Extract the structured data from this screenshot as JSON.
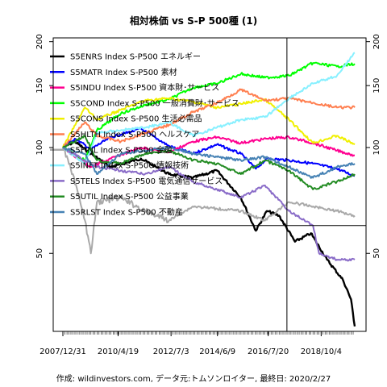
{
  "chart_data": {
    "type": "line",
    "title": "相対株価 vs S-P 500種 (1)",
    "caption": "作成: wildinvestors.com, データ元:トムソンロイター, 最終日: 2020/2/27",
    "y_scale": "log",
    "ylim": [
      30,
      205
    ],
    "y_ticks": [
      50,
      100,
      150,
      200
    ],
    "x_range": [
      "2007-12-31",
      "2020-02-27"
    ],
    "x_tick_labels": [
      "2007/12/31",
      "2010/4/19",
      "2012/7/3",
      "2014/6/9",
      "2016/7/20",
      "2018/10/4"
    ],
    "x_tick_dates": [
      "2007-12-31",
      "2010-04-19",
      "2012-07-03",
      "2014-06-09",
      "2016-07-20",
      "2018-10-04"
    ],
    "reference_line": {
      "y": 60,
      "date": "2017-05-01"
    },
    "grid": false,
    "legend_position": "top-left",
    "series": [
      {
        "name": "S5ENRS Index S-P500 エネルギー",
        "color": "#000000",
        "points": [
          [
            "2007-12-31",
            100
          ],
          [
            "2008-06-30",
            104
          ],
          [
            "2009-03-01",
            96
          ],
          [
            "2010-01-01",
            88
          ],
          [
            "2011-04-01",
            93
          ],
          [
            "2012-06-01",
            84
          ],
          [
            "2013-06-01",
            82
          ],
          [
            "2014-06-01",
            86
          ],
          [
            "2015-06-01",
            72
          ],
          [
            "2016-01-15",
            58
          ],
          [
            "2016-07-01",
            66
          ],
          [
            "2017-01-01",
            64
          ],
          [
            "2017-09-01",
            54
          ],
          [
            "2018-05-01",
            57
          ],
          [
            "2019-01-01",
            48
          ],
          [
            "2019-09-01",
            42
          ],
          [
            "2020-01-01",
            37
          ],
          [
            "2020-02-27",
            31
          ]
        ]
      },
      {
        "name": "S5MATR Index S-P500 素材",
        "color": "#0000ff",
        "points": [
          [
            "2007-12-31",
            100
          ],
          [
            "2008-06-30",
            106
          ],
          [
            "2009-03-01",
            99
          ],
          [
            "2010-01-01",
            107
          ],
          [
            "2011-04-01",
            113
          ],
          [
            "2012-06-01",
            101
          ],
          [
            "2013-06-01",
            96
          ],
          [
            "2014-06-01",
            102
          ],
          [
            "2015-06-01",
            96
          ],
          [
            "2016-01-15",
            87
          ],
          [
            "2016-07-01",
            93
          ],
          [
            "2017-06-01",
            92
          ],
          [
            "2018-06-01",
            90
          ],
          [
            "2019-06-01",
            87
          ],
          [
            "2020-02-27",
            83
          ]
        ]
      },
      {
        "name": "S5INDU Index S-P500 資本財･サービス",
        "color": "#ff0090",
        "points": [
          [
            "2007-12-31",
            100
          ],
          [
            "2009-03-01",
            88
          ],
          [
            "2010-01-01",
            93
          ],
          [
            "2011-04-01",
            100
          ],
          [
            "2012-06-01",
            97
          ],
          [
            "2013-06-01",
            104
          ],
          [
            "2014-06-01",
            107
          ],
          [
            "2015-06-01",
            103
          ],
          [
            "2016-07-01",
            106
          ],
          [
            "2017-06-01",
            107
          ],
          [
            "2018-06-01",
            103
          ],
          [
            "2019-06-01",
            98
          ],
          [
            "2020-02-27",
            95
          ]
        ]
      },
      {
        "name": "S5COND Index S-P500 一般消費財･サービス",
        "color": "#00ff00",
        "points": [
          [
            "2007-12-31",
            100
          ],
          [
            "2008-12-01",
            92
          ],
          [
            "2009-06-01",
            112
          ],
          [
            "2010-06-01",
            125
          ],
          [
            "2011-06-01",
            132
          ],
          [
            "2012-06-01",
            137
          ],
          [
            "2013-06-01",
            148
          ],
          [
            "2014-06-01",
            152
          ],
          [
            "2015-06-01",
            162
          ],
          [
            "2016-06-01",
            158
          ],
          [
            "2017-06-01",
            160
          ],
          [
            "2018-06-01",
            174
          ],
          [
            "2019-06-01",
            170
          ],
          [
            "2020-02-27",
            173
          ]
        ]
      },
      {
        "name": "S5CONS Index S-P500 生活必需品",
        "color": "#f0f000",
        "points": [
          [
            "2007-12-31",
            100
          ],
          [
            "2008-12-01",
            130
          ],
          [
            "2009-06-01",
            120
          ],
          [
            "2010-06-01",
            128
          ],
          [
            "2011-06-01",
            136
          ],
          [
            "2012-06-01",
            138
          ],
          [
            "2013-06-01",
            135
          ],
          [
            "2014-06-01",
            130
          ],
          [
            "2015-06-01",
            133
          ],
          [
            "2016-06-01",
            137
          ],
          [
            "2017-06-01",
            120
          ],
          [
            "2018-06-01",
            103
          ],
          [
            "2019-06-01",
            108
          ],
          [
            "2020-02-27",
            102
          ]
        ]
      },
      {
        "name": "S5HLTH Index S-P500 ヘルスケア",
        "color": "#ff7f50",
        "points": [
          [
            "2007-12-31",
            100
          ],
          [
            "2008-12-01",
            118
          ],
          [
            "2009-06-01",
            108
          ],
          [
            "2010-06-01",
            104
          ],
          [
            "2011-06-01",
            110
          ],
          [
            "2012-06-01",
            116
          ],
          [
            "2013-06-01",
            126
          ],
          [
            "2014-06-01",
            134
          ],
          [
            "2015-06-01",
            146
          ],
          [
            "2016-06-01",
            136
          ],
          [
            "2017-06-01",
            138
          ],
          [
            "2018-06-01",
            134
          ],
          [
            "2019-06-01",
            130
          ],
          [
            "2020-02-27",
            130
          ]
        ]
      },
      {
        "name": "S5FINL Index S-P500 金融",
        "color": "#a9a9a9",
        "points": [
          [
            "2007-12-31",
            100
          ],
          [
            "2008-06-01",
            84
          ],
          [
            "2008-12-01",
            62
          ],
          [
            "2009-03-01",
            50
          ],
          [
            "2009-06-01",
            70
          ],
          [
            "2010-06-01",
            72
          ],
          [
            "2011-06-01",
            66
          ],
          [
            "2012-06-01",
            62
          ],
          [
            "2013-06-01",
            68
          ],
          [
            "2014-06-01",
            67
          ],
          [
            "2015-06-01",
            66
          ],
          [
            "2016-06-01",
            62
          ],
          [
            "2017-06-01",
            70
          ],
          [
            "2018-06-01",
            68
          ],
          [
            "2019-06-01",
            66
          ],
          [
            "2020-02-27",
            64
          ]
        ]
      },
      {
        "name": "S5INFT Index S-P500 情報技術",
        "color": "#87f0ff",
        "points": [
          [
            "2007-12-31",
            100
          ],
          [
            "2008-12-01",
            90
          ],
          [
            "2009-06-01",
            110
          ],
          [
            "2010-06-01",
            112
          ],
          [
            "2011-06-01",
            114
          ],
          [
            "2012-06-01",
            118
          ],
          [
            "2013-06-01",
            108
          ],
          [
            "2014-06-01",
            114
          ],
          [
            "2015-06-01",
            120
          ],
          [
            "2016-06-01",
            122
          ],
          [
            "2017-06-01",
            138
          ],
          [
            "2018-06-01",
            152
          ],
          [
            "2019-06-01",
            160
          ],
          [
            "2020-02-27",
            186
          ]
        ]
      },
      {
        "name": "S5TELS Index S-P500 電気通信サービス",
        "color": "#8a6cc8",
        "points": [
          [
            "2007-12-31",
            100
          ],
          [
            "2008-12-01",
            92
          ],
          [
            "2009-06-01",
            88
          ],
          [
            "2010-06-01",
            86
          ],
          [
            "2011-06-01",
            84
          ],
          [
            "2012-06-01",
            88
          ],
          [
            "2013-06-01",
            80
          ],
          [
            "2014-06-01",
            76
          ],
          [
            "2015-06-01",
            72
          ],
          [
            "2016-06-01",
            78
          ],
          [
            "2017-06-01",
            66
          ],
          [
            "2018-06-01",
            60
          ],
          [
            "2018-09-01",
            50
          ],
          [
            "2019-06-01",
            48
          ],
          [
            "2020-02-27",
            48
          ]
        ]
      },
      {
        "name": "S5UTIL Index S-P500 公益事業",
        "color": "#228b22",
        "points": [
          [
            "2007-12-31",
            100
          ],
          [
            "2008-12-01",
            108
          ],
          [
            "2009-06-01",
            92
          ],
          [
            "2010-06-01",
            90
          ],
          [
            "2011-06-01",
            96
          ],
          [
            "2012-06-01",
            98
          ],
          [
            "2013-06-01",
            92
          ],
          [
            "2014-06-01",
            90
          ],
          [
            "2015-06-01",
            84
          ],
          [
            "2016-06-01",
            92
          ],
          [
            "2017-06-01",
            86
          ],
          [
            "2018-06-01",
            76
          ],
          [
            "2019-06-01",
            80
          ],
          [
            "2020-02-27",
            84
          ]
        ]
      },
      {
        "name": "S5RLST Index S-P500 不動産",
        "color": "#4682b4",
        "points": [
          [
            "2007-12-31",
            100
          ],
          [
            "2008-12-01",
            96
          ],
          [
            "2009-06-01",
            84
          ],
          [
            "2010-06-01",
            96
          ],
          [
            "2011-06-01",
            98
          ],
          [
            "2012-06-01",
            100
          ],
          [
            "2013-06-01",
            96
          ],
          [
            "2014-06-01",
            94
          ],
          [
            "2015-06-01",
            92
          ],
          [
            "2016-06-01",
            94
          ],
          [
            "2017-06-01",
            88
          ],
          [
            "2018-06-01",
            82
          ],
          [
            "2019-06-01",
            88
          ],
          [
            "2020-02-27",
            90
          ]
        ]
      }
    ]
  }
}
